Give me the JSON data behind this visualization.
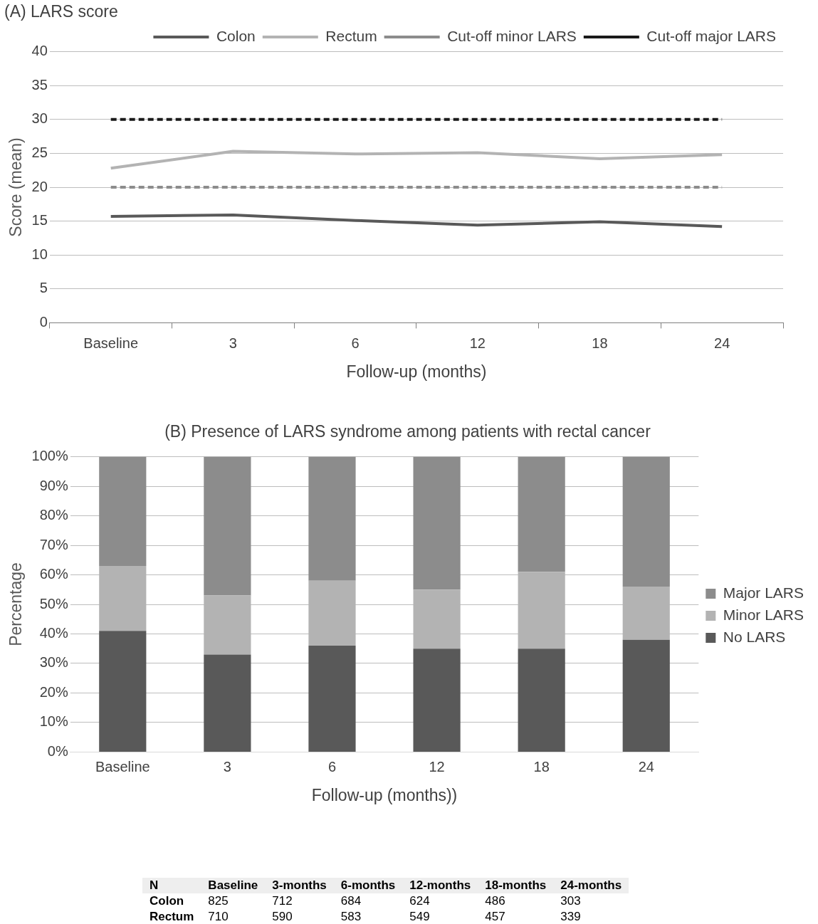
{
  "chart_data": [
    {
      "type": "line",
      "title": "(A) LARS score",
      "xlabel": "Follow-up (months)",
      "ylabel": "Score (mean)",
      "categories": [
        "Baseline",
        "3",
        "6",
        "12",
        "18",
        "24"
      ],
      "series": [
        {
          "name": "Colon",
          "color": "#595959",
          "values": [
            15.7,
            15.9,
            15.1,
            14.4,
            14.9,
            14.2
          ]
        },
        {
          "name": "Rectum",
          "color": "#b3b3b3",
          "values": [
            22.8,
            25.3,
            24.9,
            25.1,
            24.2,
            24.8
          ]
        },
        {
          "name": "Cut-off minor LARS",
          "color": "#8c8c8c",
          "line_style": "dashed",
          "values": [
            20,
            20,
            20,
            20,
            20,
            20
          ]
        },
        {
          "name": "Cut-off major LARS",
          "color": "#1a1a1a",
          "line_style": "dashed",
          "values": [
            30,
            30,
            30,
            30,
            30,
            30
          ]
        }
      ],
      "ylim": [
        0,
        40
      ],
      "yticks": [
        0,
        5,
        10,
        15,
        20,
        25,
        30,
        35,
        40
      ],
      "grid": "y",
      "legend": "top right",
      "marker": "none"
    },
    {
      "type": "bar",
      "stacked": true,
      "title": "(B) Presence of LARS syndrome among patients with rectal cancer",
      "xlabel": "Follow-up (months))",
      "ylabel": "Percentage",
      "categories": [
        "Baseline",
        "3",
        "6",
        "12",
        "18",
        "24"
      ],
      "series": [
        {
          "name": "No LARS",
          "color": "#595959",
          "values": [
            41,
            33,
            36,
            35,
            35,
            38
          ]
        },
        {
          "name": "Minor LARS",
          "color": "#b3b3b3",
          "values": [
            22,
            20,
            22,
            20,
            26,
            18
          ]
        },
        {
          "name": "Major LARS",
          "color": "#8c8c8c",
          "values": [
            37,
            47,
            42,
            45,
            39,
            44
          ]
        }
      ],
      "ylim": [
        0,
        100
      ],
      "yticks": [
        {
          "value": 0,
          "label": "0%"
        },
        {
          "value": 10,
          "label": "10%"
        },
        {
          "value": 20,
          "label": "20%"
        },
        {
          "value": 30,
          "label": "30%"
        },
        {
          "value": 40,
          "label": "40%"
        },
        {
          "value": 50,
          "label": "50%"
        },
        {
          "value": 60,
          "label": "60%"
        },
        {
          "value": 70,
          "label": "70%"
        },
        {
          "value": 80,
          "label": "80%"
        },
        {
          "value": 90,
          "label": "90%"
        },
        {
          "value": 100,
          "label": "100%"
        }
      ],
      "grid": "y",
      "legend": "right"
    },
    {
      "type": "other",
      "title": "N",
      "categories": [
        "Baseline",
        "3-months",
        "6-months",
        "12-months",
        "18-months",
        "24-months"
      ],
      "annotations": [
        "Colon",
        "825",
        "712",
        "684",
        "624",
        "486",
        "303",
        "Rectum",
        "710",
        "590",
        "583",
        "549",
        "457",
        "339"
      ]
    }
  ]
}
